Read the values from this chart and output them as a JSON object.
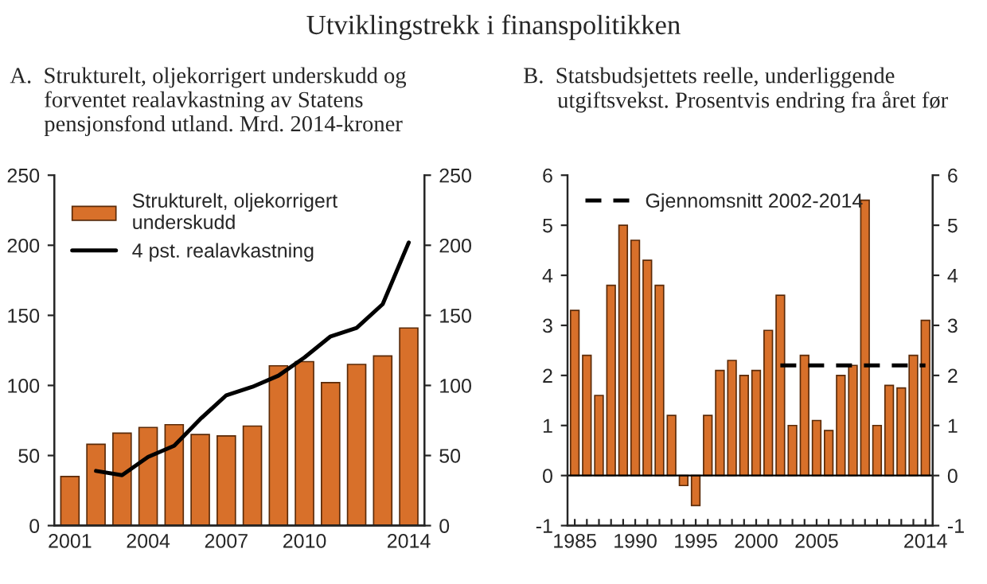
{
  "chart_data": [
    {
      "type": "bar",
      "title": "A.  Strukturelt, oljekorrigert underskudd og\n      forventet realavkastning av Statens\n      pensjonsfond utland. Mrd. 2014-kroner",
      "annotations": [
        "Utviklingstrekk i finanspolitikken"
      ],
      "categories": [
        "2001",
        null,
        null,
        "2004",
        null,
        null,
        "2007",
        null,
        null,
        "2010",
        null,
        null,
        null,
        "2014"
      ],
      "series": [
        {
          "name": "Strukturelt, oljekorrigert\nunderskudd",
          "color": "#d8702a",
          "values": [
            35,
            58,
            66,
            70,
            72,
            65,
            64,
            71,
            114,
            117,
            102,
            115,
            121,
            141
          ]
        },
        {
          "name": "4 pst. realavkastning",
          "type": "line",
          "color": "#000000",
          "values": [
            null,
            39,
            36,
            49,
            57,
            76,
            93,
            99,
            107,
            120,
            135,
            141,
            158,
            202
          ]
        }
      ],
      "ylim": [
        0,
        250
      ],
      "yticks": [
        0,
        50,
        100,
        150,
        200,
        250
      ],
      "y2lim": [
        0,
        250
      ],
      "y2ticks": [
        0,
        50,
        100,
        150,
        200,
        250
      ],
      "legend": "top left",
      "grid": false
    },
    {
      "type": "bar",
      "title": "B.  Statsbudsjettets reelle, underliggende\n      utgiftsvekst. Prosentvis endring fra året før",
      "categories": [
        "1985",
        null,
        null,
        null,
        null,
        "1990",
        null,
        null,
        null,
        null,
        "1995",
        null,
        null,
        null,
        null,
        "2000",
        null,
        null,
        null,
        null,
        "2005",
        null,
        null,
        null,
        null,
        null,
        null,
        null,
        null,
        "2014"
      ],
      "series": [
        {
          "color": "#d8702a",
          "values": [
            3.3,
            2.4,
            1.6,
            3.8,
            5.0,
            4.7,
            4.3,
            3.8,
            1.2,
            -0.2,
            -0.6,
            1.2,
            2.1,
            2.3,
            2.0,
            2.1,
            2.9,
            3.6,
            1.0,
            2.4,
            1.1,
            0.9,
            2.0,
            2.2,
            5.5,
            1.0,
            1.8,
            1.75,
            2.4,
            3.1
          ]
        },
        {
          "name": "Gjennomsnitt 2002-2014",
          "type": "line",
          "color": "#000000",
          "line_style": "dashed",
          "values": [
            null,
            null,
            null,
            null,
            null,
            null,
            null,
            null,
            null,
            null,
            null,
            null,
            null,
            null,
            null,
            null,
            null,
            2.2,
            2.2,
            2.2,
            2.2,
            2.2,
            2.2,
            2.2,
            2.2,
            2.2,
            2.2,
            2.2,
            2.2,
            2.2
          ]
        }
      ],
      "ylim": [
        -1,
        6
      ],
      "yticks": [
        -1,
        0,
        1,
        2,
        3,
        4,
        5,
        6
      ],
      "y2lim": [
        -1,
        6
      ],
      "y2ticks": [
        -1,
        0,
        1,
        2,
        3,
        4,
        5,
        6
      ],
      "legend": "top left",
      "grid": false
    }
  ]
}
